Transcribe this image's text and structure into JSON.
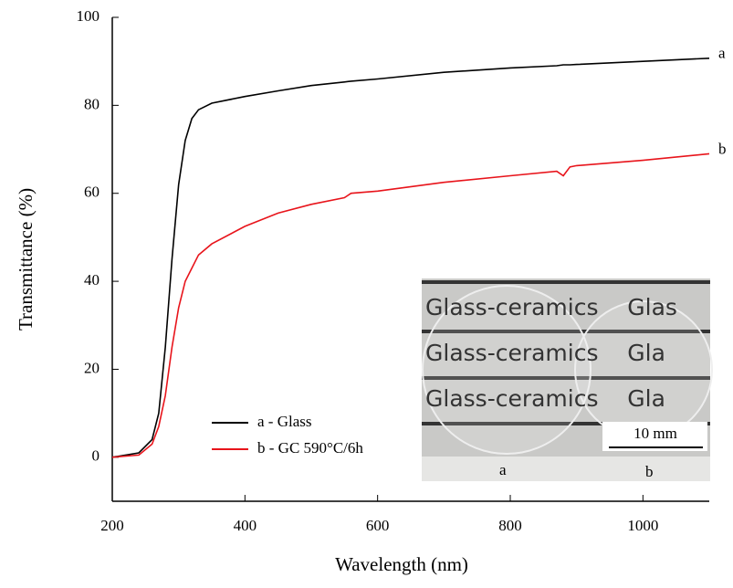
{
  "chart_data": {
    "type": "line",
    "xlabel": "Wavelength (nm)",
    "ylabel": "Transmittance (%)",
    "x": [
      200,
      240,
      260,
      270,
      280,
      290,
      300,
      310,
      320,
      330,
      350,
      400,
      450,
      500,
      550,
      560,
      600,
      700,
      800,
      870,
      880,
      890,
      900,
      1000,
      1100
    ],
    "series": [
      {
        "name": "a - Glass",
        "color": "#000000",
        "values": [
          0,
          1,
          4,
          10,
          25,
          45,
          62,
          72,
          77,
          79,
          80.5,
          82,
          83.3,
          84.5,
          85.3,
          85.5,
          86,
          87.5,
          88.5,
          89,
          89.2,
          89.2,
          89.3,
          90,
          90.7
        ]
      },
      {
        "name": "b - GC 590°C/6h",
        "color": "#e8141b",
        "values": [
          0,
          0.5,
          3,
          7,
          14,
          25,
          34,
          40,
          43,
          46,
          48.5,
          52.5,
          55.5,
          57.5,
          59,
          60,
          60.5,
          62.5,
          64,
          65,
          64,
          66,
          66.3,
          67.5,
          69
        ]
      }
    ],
    "annotations": [
      "a",
      "b"
    ],
    "xlim": [
      200,
      1100
    ],
    "xticks": [
      200,
      400,
      600,
      800,
      1000
    ],
    "ylim": [
      -10,
      100
    ],
    "yticks": [
      0,
      20,
      40,
      60,
      80,
      100
    ],
    "grid": false,
    "legend": "lower left",
    "inset": {
      "rows": [
        "Glass-ceramics    Glas",
        "Glass-ceramics    Gla",
        "Glass-ceramics    Gla"
      ],
      "scale_bar": "10 mm",
      "sample_labels": [
        "a",
        "b"
      ]
    }
  }
}
